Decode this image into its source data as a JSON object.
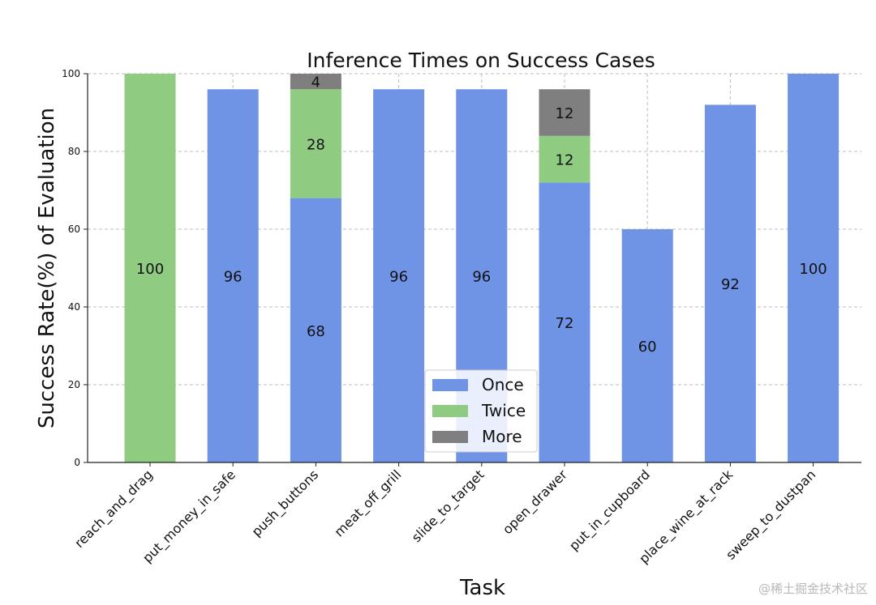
{
  "chart_data": {
    "type": "bar",
    "stacked": true,
    "title": "Inference Times on Success Cases",
    "xlabel": "Task",
    "ylabel": "Success Rate(%) of Evaluation",
    "ylim": [
      0,
      100
    ],
    "yticks": [
      0,
      20,
      40,
      60,
      80,
      100
    ],
    "grid": true,
    "legend_position": "bottom-center",
    "categories": [
      "reach_and_drag",
      "put_money_in_safe",
      "push_buttons",
      "meat_off_grill",
      "slide_to_target",
      "open_drawer",
      "put_in_cupboard",
      "place_wine_at_rack",
      "sweep_to_dustpan"
    ],
    "series": [
      {
        "name": "Once",
        "color": "#6f94e6",
        "values": [
          0,
          96,
          68,
          96,
          96,
          72,
          60,
          92,
          100
        ]
      },
      {
        "name": "Twice",
        "color": "#8fcb80",
        "values": [
          100,
          0,
          28,
          0,
          0,
          12,
          0,
          0,
          0
        ]
      },
      {
        "name": "More",
        "color": "#7f7f7f",
        "values": [
          0,
          0,
          4,
          0,
          0,
          12,
          0,
          0,
          0
        ]
      }
    ]
  },
  "watermark": "@稀土掘金技术社区"
}
